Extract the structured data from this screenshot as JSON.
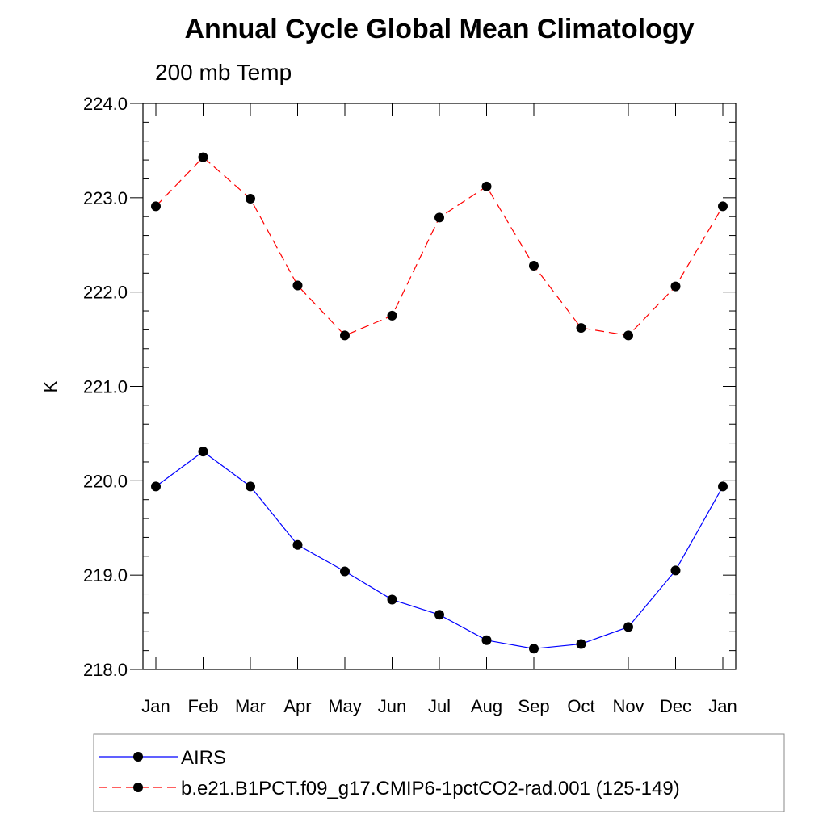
{
  "chart_data": {
    "type": "line",
    "title": "Annual Cycle Global Mean Climatology",
    "subtitle": "200 mb Temp",
    "xlabel": "",
    "ylabel": "K",
    "categories": [
      "Jan",
      "Feb",
      "Mar",
      "Apr",
      "May",
      "Jun",
      "Jul",
      "Aug",
      "Sep",
      "Oct",
      "Nov",
      "Dec",
      "Jan"
    ],
    "ylim": [
      218.0,
      224.0
    ],
    "yticks": [
      "218.0",
      "219.0",
      "220.0",
      "221.0",
      "222.0",
      "223.0",
      "224.0"
    ],
    "grid": false,
    "legend_position": "bottom",
    "series": [
      {
        "name": "AIRS",
        "color": "#0000ff",
        "style": "solid",
        "values": [
          219.94,
          220.31,
          219.94,
          219.32,
          219.04,
          218.74,
          218.58,
          218.31,
          218.22,
          218.27,
          218.45,
          219.05,
          219.94
        ]
      },
      {
        "name": "b.e21.B1PCT.f09_g17.CMIP6-1pctCO2-rad.001 (125-149)",
        "color": "#ff0000",
        "style": "dashed",
        "values": [
          222.91,
          223.43,
          222.99,
          222.07,
          221.54,
          221.75,
          222.79,
          223.12,
          222.28,
          221.62,
          221.54,
          222.06,
          222.91
        ]
      }
    ]
  }
}
